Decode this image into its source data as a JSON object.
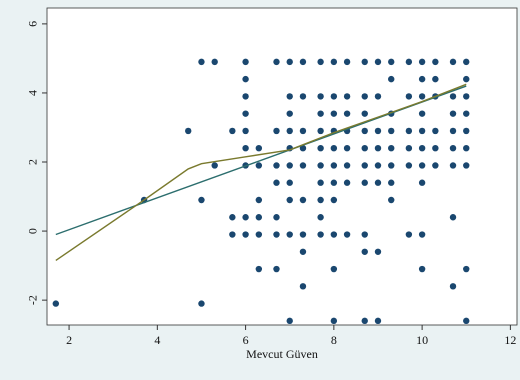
{
  "chart_data": {
    "type": "scatter",
    "x_label": "Mevcut Güven",
    "xlim": [
      1.5,
      12.15
    ],
    "ylim": [
      -2.72,
      6.46
    ],
    "xticks": [
      2,
      4,
      6,
      8,
      10,
      12
    ],
    "yticks": [
      -2,
      0,
      2,
      4,
      6
    ],
    "grid": false,
    "series": [
      {
        "type": "scatter",
        "color": "#1a476f",
        "x": [
          1.7,
          3.7,
          4.7,
          5,
          5,
          5,
          5.3,
          5.3,
          5.7,
          5.7,
          5.7,
          6,
          6,
          6,
          6,
          6,
          6,
          6,
          6,
          6,
          6.3,
          6.3,
          6.3,
          6.3,
          6.3,
          6.3,
          6.7,
          6.7,
          6.7,
          6.7,
          6.7,
          6.7,
          6.7,
          7,
          7,
          7,
          7,
          7,
          7,
          7,
          7,
          7,
          7,
          7.3,
          7.3,
          7.3,
          7.3,
          7.3,
          7.3,
          7.3,
          7.3,
          7.3,
          7.7,
          7.7,
          7.7,
          7.7,
          7.7,
          7.7,
          7.7,
          7.7,
          7.7,
          7.7,
          8,
          8,
          8,
          8,
          8,
          8,
          8,
          8,
          8,
          8,
          8,
          8.3,
          8.3,
          8.3,
          8.3,
          8.3,
          8.3,
          8.3,
          8.3,
          8.7,
          8.7,
          8.7,
          8.7,
          8.7,
          8.7,
          8.7,
          8.7,
          8.7,
          8.7,
          9,
          9,
          9,
          9,
          9,
          9,
          9,
          9,
          9.3,
          9.3,
          9.3,
          9.3,
          9.3,
          9.3,
          9.3,
          9.3,
          9.7,
          9.7,
          9.7,
          9.7,
          9.7,
          9.7,
          10,
          10,
          10,
          10,
          10,
          10,
          10,
          10,
          10,
          10,
          10.3,
          10.3,
          10.3,
          10.3,
          10.3,
          10.3,
          10.7,
          10.7,
          10.7,
          10.7,
          10.7,
          10.7,
          10.7,
          10.7,
          11,
          11,
          11,
          11,
          11,
          11,
          11,
          11,
          11
        ],
        "values": [
          -2.1,
          0.9,
          2.9,
          4.9,
          0.9,
          -2.1,
          4.9,
          1.9,
          2.9,
          0.4,
          -0.1,
          4.9,
          4.4,
          3.9,
          3.4,
          2.9,
          2.4,
          1.9,
          0.4,
          -0.1,
          2.4,
          1.9,
          0.9,
          0.4,
          -0.1,
          -1.1,
          4.9,
          2.9,
          1.9,
          1.4,
          0.4,
          -0.1,
          -1.1,
          4.9,
          3.9,
          3.4,
          2.9,
          2.4,
          1.9,
          1.4,
          0.9,
          -0.1,
          -2.6,
          4.9,
          3.9,
          2.9,
          2.4,
          1.9,
          0.9,
          -0.1,
          -0.6,
          -1.6,
          4.9,
          3.9,
          3.4,
          2.9,
          2.4,
          1.9,
          1.4,
          0.9,
          0.4,
          -0.1,
          4.9,
          3.9,
          3.4,
          2.9,
          2.4,
          1.9,
          1.4,
          0.9,
          -0.1,
          -1.1,
          -2.6,
          4.9,
          3.9,
          3.4,
          2.9,
          2.4,
          1.9,
          1.4,
          -0.1,
          4.9,
          3.9,
          3.4,
          2.9,
          2.4,
          1.9,
          1.4,
          -0.1,
          -0.6,
          -2.6,
          4.9,
          3.9,
          2.9,
          2.4,
          1.9,
          1.4,
          -0.6,
          -2.6,
          4.9,
          4.4,
          3.4,
          2.9,
          2.4,
          1.9,
          1.4,
          0.9,
          4.9,
          3.9,
          2.9,
          2.4,
          1.9,
          -0.1,
          4.9,
          4.4,
          3.9,
          3.4,
          2.9,
          2.4,
          1.9,
          1.4,
          -0.1,
          -1.1,
          4.9,
          4.4,
          3.9,
          2.9,
          2.4,
          1.9,
          4.9,
          3.9,
          3.4,
          2.9,
          2.4,
          1.9,
          0.4,
          -1.6,
          4.9,
          4.4,
          3.9,
          3.4,
          2.9,
          2.4,
          1.9,
          -1.1,
          -2.6
        ]
      },
      {
        "type": "line",
        "color": "#2c6e6e",
        "x": [
          1.7,
          11
        ],
        "values": [
          -0.1,
          4.2
        ]
      },
      {
        "type": "line",
        "color": "#7a7a2e",
        "x": [
          1.7,
          3.7,
          4.7,
          5,
          6,
          7,
          8,
          9,
          10,
          11
        ],
        "values": [
          -0.85,
          0.9,
          1.8,
          1.95,
          2.15,
          2.35,
          2.85,
          3.3,
          3.75,
          4.25
        ]
      }
    ]
  }
}
